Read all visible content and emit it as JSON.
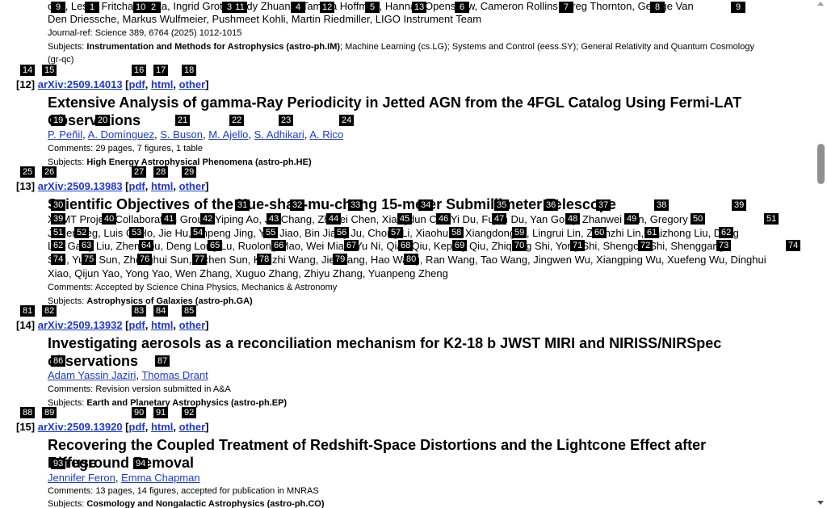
{
  "colors": {
    "link": "#1b39cf",
    "tag_bg": "#000000"
  },
  "top_entry": {
    "authors_line1": "ong, Leslie Fritchal Gupta, Ingrid Groth, Andy Zhuang, Tamara Hoffman, Hannah Openshaw, Cameron Rollins, Greg Thornton, George Van",
    "authors_line2": "Den Driessche, Markus Wulfmeier, Pushmeet Kohli, Martin Riedmiller, LIGO Instrument Team",
    "journal": "Journal-ref: Science 389, 6764 (2025) 1012-1015",
    "subjects_label": "Subjects:",
    "subjects_primary": "Instrumentation and Methods for Astrophysics (astro-ph.IM)",
    "subjects_rest": "; Machine Learning (cs.LG); Systems and Control (eess.SY); General Relativity and Quantum Cosmology",
    "subjects_rest2": "(gr-qc)"
  },
  "entries": [
    {
      "num": "[12]",
      "arxiv": "arXiv:2509.14013",
      "pdf": "pdf",
      "html": "html",
      "other": "other",
      "title1": "Extensive Analysis of gamma-Ray Periodicity in Jetted AGN from the 4FGL Catalog Using Fermi-LAT",
      "title2": "Observations",
      "authors": [
        "P. Peñil",
        "A. Domínguez",
        "S. Buson",
        "M. Ajello",
        "S. Adhikari",
        "A. Rico"
      ],
      "comments_label": "Comments:",
      "comments": "29 pages, 7 figures, 1 table",
      "subjects_label": "Subjects:",
      "subjects": "High Energy Astrophysical Phenomena (astro-ph.HE)"
    },
    {
      "num": "[13]",
      "arxiv": "arXiv:2509.13983",
      "pdf": "pdf",
      "html": "html",
      "other": "other",
      "title1": "Scientific Objectives of the Xue-shan-mu-chang 15-meter Submillimeter Telescope",
      "authors_line1": "XSMT Project Collaboration Group, Yiping Ao, Jin Chang, Zhiwei Chen, Xiangdun Cui, Yi Du, Fujun Du, Yan Gong, Zhanwei Han, Gregory",
      "authors_line2": "J. Herczeg, Luis C. Ho, Jie Hu, Jinpeng Jing, Yan Jiao, Bin Jiang Ju, Chong Li, Xiaohu Li, Xiangdong Li, Lingrui Lin, Zhenzhi Lin, Daizhong Liu, Dong",
      "authors_line3": "Liu, Gang Liu, Zhen Lou, Deng Long Lu, Ruolong Mao, Wei Miao, Yu Ni, Qian Qiu, Keping Qiu, Zhiqiang Shi, Yong Shi, Shengcai Shi, Shenggang",
      "authors_line4": "Sun, Yuan Sun, Zhonghui Sun, Yichen Sun, Kunzhi Wang, Jie Wang, Hao Wang, Ran Wang, Tao Wang, Jingwen Wu, Xiangping Wu, Xuefeng Wu, Dinghui",
      "authors_line5": "Xiao, Qijun Yao, Yong Yao, Wen Zhang, Xuguo Zhang, Zhiyu Zhang, Yuanpeng Zheng",
      "comments_label": "Comments:",
      "comments": "Accepted by Science China Physics, Mechanics & Astronomy",
      "subjects_label": "Subjects:",
      "subjects": "Astrophysics of Galaxies (astro-ph.GA)"
    },
    {
      "num": "[14]",
      "arxiv": "arXiv:2509.13932",
      "pdf": "pdf",
      "html": "html",
      "other": "other",
      "title1": "Investigating aerosols as a reconciliation mechanism for K2-18 b JWST MIRI and NIRISS/NIRSpec",
      "title2": "observations",
      "authors": [
        "Adam Yassin Jaziri",
        "Thomas Drant"
      ],
      "comments_label": "Comments:",
      "comments": "Revision version submitted in A&A",
      "subjects_label": "Subjects:",
      "subjects": "Earth and Planetary Astrophysics (astro-ph.EP)"
    },
    {
      "num": "[15]",
      "arxiv": "arXiv:2509.13920",
      "pdf": "pdf",
      "html": "html",
      "other": "other",
      "title1": "Recovering the Coupled Treatment of Redshift-Space Distortions and the Lightcone Effect after Diffuse",
      "title2": "Foreground Removal",
      "authors": [
        "Jennifer Feron",
        "Emma Chapman"
      ],
      "comments_label": "Comments:",
      "comments": "13 pages, 14 figures, accepted for publication in MNRAS",
      "subjects_label": "Subjects:",
      "subjects": "Cosmology and Nongalactic Astrophysics (astro-ph.CO)"
    }
  ],
  "tags": [
    "9",
    "1",
    "10",
    "2",
    "3",
    "11",
    "4",
    "12",
    "5",
    "13",
    "6",
    "7",
    "8",
    "9",
    "14",
    "15",
    "16",
    "17",
    "18",
    "19",
    "20",
    "21",
    "22",
    "23",
    "24",
    "25",
    "26",
    "27",
    "28",
    "29",
    "30",
    "31",
    "32",
    "33",
    "34",
    "35",
    "36",
    "37",
    "38",
    "39",
    "39",
    "40",
    "41",
    "42",
    "43",
    "44",
    "45",
    "46",
    "47",
    "48",
    "49",
    "50",
    "51",
    "51",
    "52",
    "53",
    "54",
    "55",
    "56",
    "57",
    "58",
    "59",
    "60",
    "61",
    "62",
    "62",
    "63",
    "64",
    "65",
    "66",
    "67",
    "68",
    "69",
    "70",
    "71",
    "72",
    "73",
    "74",
    "74",
    "75",
    "76",
    "77",
    "78",
    "79",
    "80",
    "81",
    "82",
    "83",
    "84",
    "85",
    "86",
    "87",
    "88",
    "89",
    "90",
    "91",
    "92",
    "93",
    "94"
  ]
}
